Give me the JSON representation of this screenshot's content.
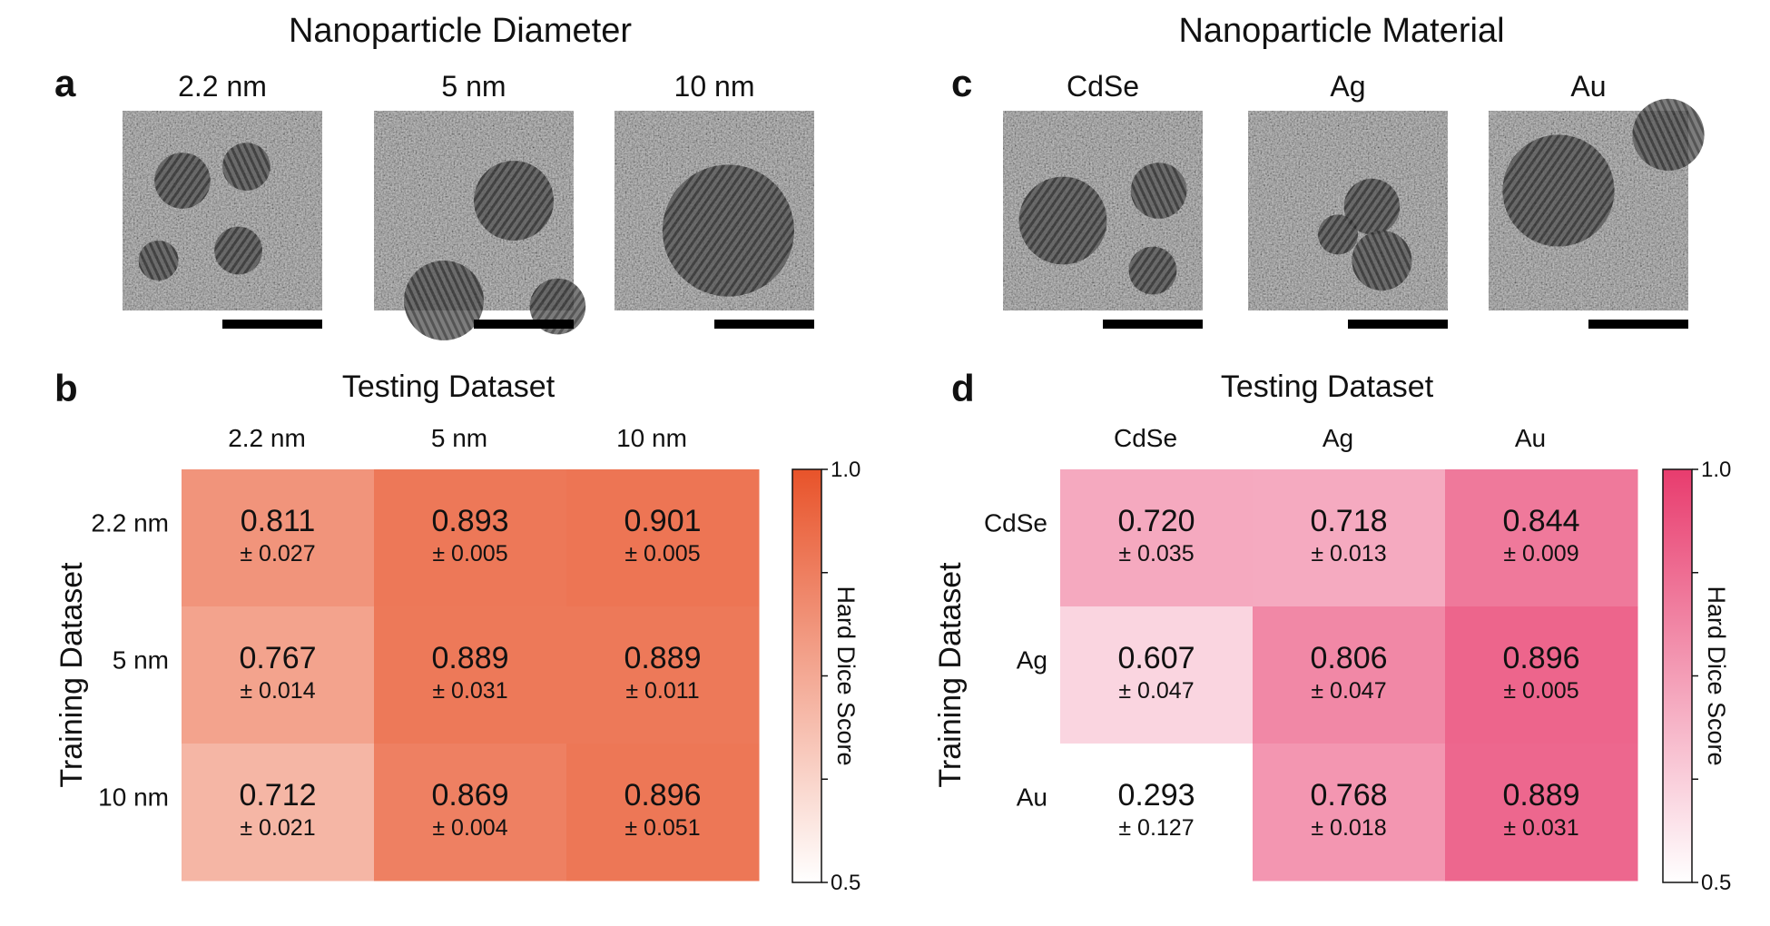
{
  "sections": {
    "diameter_title": "Nanoparticle Diameter",
    "material_title": "Nanoparticle Material",
    "diameter_color": "#ef7a56",
    "material_color": "#e9587f"
  },
  "panels": {
    "a": "a",
    "b": "b",
    "c": "c",
    "d": "d"
  },
  "images_a": [
    "2.2 nm",
    "5 nm",
    "10 nm"
  ],
  "images_c": [
    "CdSe",
    "Ag",
    "Au"
  ],
  "chart_data": [
    {
      "type": "heatmap",
      "panel": "b",
      "title": "Testing Dataset",
      "xlabel": "Testing Dataset",
      "ylabel": "Training Dataset",
      "x_categories": [
        "2.2 nm",
        "5 nm",
        "10 nm"
      ],
      "y_categories": [
        "2.2 nm",
        "5 nm",
        "10 nm"
      ],
      "values": [
        [
          0.811,
          0.893,
          0.901
        ],
        [
          0.767,
          0.889,
          0.889
        ],
        [
          0.712,
          0.869,
          0.896
        ]
      ],
      "value_labels": [
        [
          "0.811",
          "0.893",
          "0.901"
        ],
        [
          "0.767",
          "0.889",
          "0.889"
        ],
        [
          "0.712",
          "0.869",
          "0.896"
        ]
      ],
      "errors": [
        [
          "± 0.027",
          "± 0.005",
          "± 0.005"
        ],
        [
          "± 0.014",
          "± 0.031",
          "± 0.011"
        ],
        [
          "± 0.021",
          "± 0.004",
          "± 0.051"
        ]
      ],
      "colorbar": {
        "label": "Hard Dice Score",
        "min": 0.5,
        "max": 1.0,
        "min_label": "0.5",
        "max_label": "1.0",
        "color": "#e8532a"
      }
    },
    {
      "type": "heatmap",
      "panel": "d",
      "title": "Testing Dataset",
      "xlabel": "Testing Dataset",
      "ylabel": "Training Dataset",
      "x_categories": [
        "CdSe",
        "Ag",
        "Au"
      ],
      "y_categories": [
        "CdSe",
        "Ag",
        "Au"
      ],
      "values": [
        [
          0.72,
          0.718,
          0.844
        ],
        [
          0.607,
          0.806,
          0.896
        ],
        [
          0.293,
          0.768,
          0.889
        ]
      ],
      "value_labels": [
        [
          "0.720",
          "0.718",
          "0.844"
        ],
        [
          "0.607",
          "0.806",
          "0.896"
        ],
        [
          "0.293",
          "0.768",
          "0.889"
        ]
      ],
      "errors": [
        [
          "± 0.035",
          "± 0.013",
          "± 0.009"
        ],
        [
          "± 0.047",
          "± 0.047",
          "± 0.005"
        ],
        [
          "± 0.127",
          "± 0.018",
          "± 0.031"
        ]
      ],
      "colorbar": {
        "label": "Hard Dice Score",
        "min": 0.5,
        "max": 1.0,
        "min_label": "0.5",
        "max_label": "1.0",
        "color": "#e83c6e"
      }
    }
  ]
}
